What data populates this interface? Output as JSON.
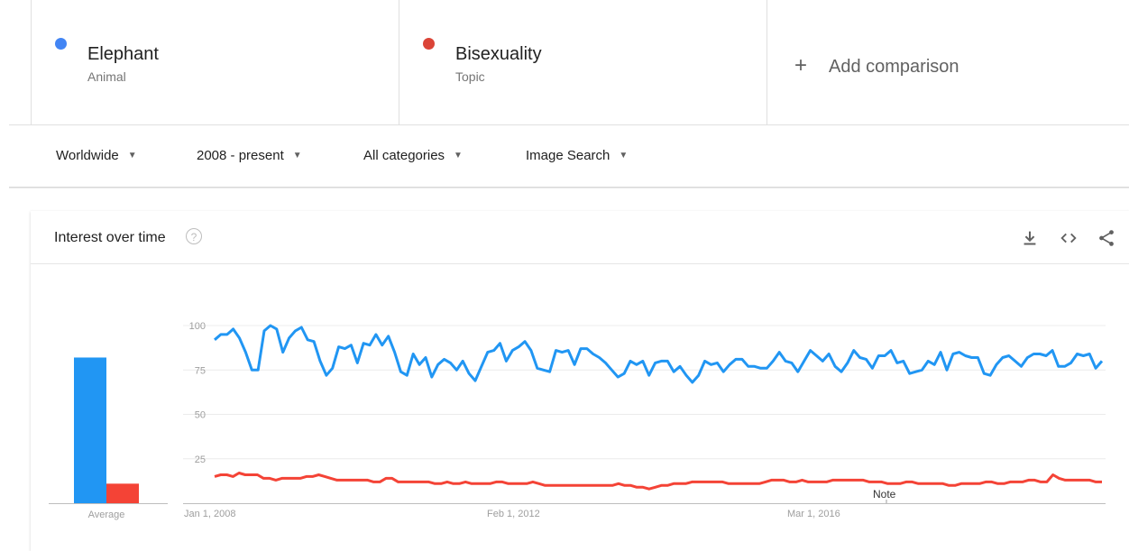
{
  "terms": [
    {
      "name": "Elephant",
      "type": "Animal",
      "color": "#4285f4"
    },
    {
      "name": "Bisexuality",
      "type": "Topic",
      "color": "#db4437"
    }
  ],
  "add_comparison": {
    "icon": "plus-icon",
    "label": "Add comparison"
  },
  "filters": [
    {
      "label": "Worldwide"
    },
    {
      "label": "2008 - present"
    },
    {
      "label": "All categories"
    },
    {
      "label": "Image Search"
    }
  ],
  "card": {
    "title": "Interest over time",
    "icons": [
      "help-icon",
      "download-icon",
      "embed-code-icon",
      "share-icon"
    ]
  },
  "chart_data": {
    "type": "line",
    "average": {
      "label": "Average",
      "values": [
        {
          "series": "Elephant",
          "value": 82
        },
        {
          "series": "Bisexuality",
          "value": 11
        }
      ]
    },
    "x_tick_labels": [
      "Jan 1, 2008",
      "Feb 1, 2012",
      "Mar 1, 2016"
    ],
    "y_ticks": [
      25,
      50,
      75,
      100
    ],
    "ylim": [
      0,
      100
    ],
    "grid": true,
    "annotation": "Note",
    "series": [
      {
        "name": "Elephant",
        "color": "#2196f3",
        "values": [
          92,
          95,
          95,
          98,
          93,
          85,
          75,
          75,
          97,
          100,
          98,
          85,
          93,
          97,
          99,
          92,
          91,
          80,
          72,
          76,
          88,
          87,
          89,
          79,
          90,
          89,
          95,
          89,
          94,
          85,
          74,
          72,
          84,
          78,
          82,
          71,
          78,
          81,
          79,
          75,
          80,
          73,
          69,
          77,
          85,
          86,
          90,
          80,
          86,
          88,
          91,
          86,
          76,
          75,
          74,
          86,
          85,
          86,
          78,
          87,
          87,
          84,
          82,
          79,
          75,
          71,
          73,
          80,
          78,
          80,
          72,
          79,
          80,
          80,
          74,
          77,
          72,
          68,
          72,
          80,
          78,
          79,
          74,
          78,
          81,
          81,
          77,
          77,
          76,
          76,
          80,
          85,
          80,
          79,
          74,
          80,
          86,
          83,
          80,
          84,
          77,
          74,
          79,
          86,
          82,
          81,
          76,
          83,
          83,
          86,
          79,
          80,
          73,
          74,
          75,
          80,
          78,
          85,
          75,
          84,
          85,
          83,
          82,
          82,
          73,
          72,
          78,
          82,
          83,
          80,
          77,
          82,
          84,
          84,
          83,
          86,
          77,
          77,
          79,
          84,
          83,
          84,
          76,
          80
        ],
        "x_start": "Jan 1, 2008"
      },
      {
        "name": "Bisexuality",
        "color": "#f44336",
        "values": [
          15,
          16,
          16,
          15,
          17,
          16,
          16,
          16,
          14,
          14,
          13,
          14,
          14,
          14,
          14,
          15,
          15,
          16,
          15,
          14,
          13,
          13,
          13,
          13,
          13,
          13,
          12,
          12,
          14,
          14,
          12,
          12,
          12,
          12,
          12,
          12,
          11,
          11,
          12,
          11,
          11,
          12,
          11,
          11,
          11,
          11,
          12,
          12,
          11,
          11,
          11,
          11,
          12,
          11,
          10,
          10,
          10,
          10,
          10,
          10,
          10,
          10,
          10,
          10,
          10,
          10,
          11,
          10,
          10,
          9,
          9,
          8,
          9,
          10,
          10,
          11,
          11,
          11,
          12,
          12,
          12,
          12,
          12,
          12,
          11,
          11,
          11,
          11,
          11,
          11,
          12,
          13,
          13,
          13,
          12,
          12,
          13,
          12,
          12,
          12,
          12,
          13,
          13,
          13,
          13,
          13,
          13,
          12,
          12,
          12,
          11,
          11,
          11,
          12,
          12,
          11,
          11,
          11,
          11,
          11,
          10,
          10,
          11,
          11,
          11,
          11,
          12,
          12,
          11,
          11,
          12,
          12,
          12,
          13,
          13,
          12,
          12,
          16,
          14,
          13,
          13,
          13,
          13,
          13,
          12,
          12
        ]
      }
    ]
  }
}
